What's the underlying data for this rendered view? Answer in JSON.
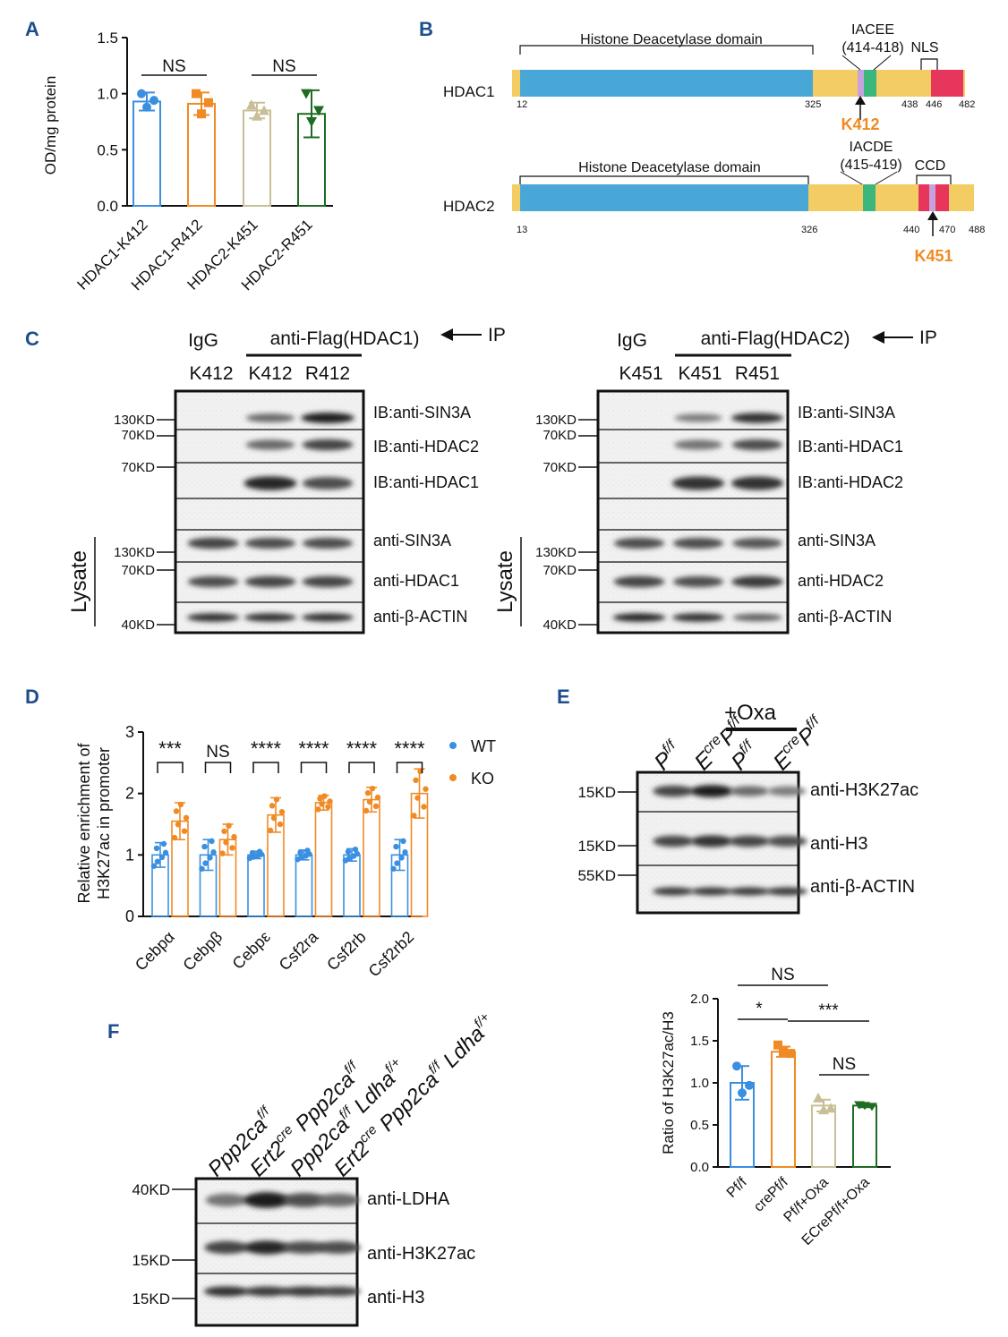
{
  "panels": {
    "A": "A",
    "B": "B",
    "C": "C",
    "D": "D",
    "E": "E",
    "F": "F"
  },
  "colors": {
    "blue": "#3a8fe0",
    "orange": "#f08a24",
    "tan": "#c9bf97",
    "green": "#1e6b23",
    "domain": "#49a7d8",
    "linker": "#f3cd63",
    "motif": "#3cb77c",
    "nls": "#e7365b",
    "accent": "#f08a24"
  },
  "panelA": {
    "chart_data": {
      "type": "bar",
      "ylabel": "OD/mg protein",
      "ylim": [
        0,
        1.5
      ],
      "yticks": [
        "0.0",
        "0.5",
        "1.0",
        "1.5"
      ],
      "categories": [
        "HDAC1-K412",
        "HDAC1-R412",
        "HDAC2-K451",
        "HDAC2-R451"
      ],
      "values": [
        0.93,
        0.91,
        0.85,
        0.82
      ],
      "errors": [
        0.08,
        0.1,
        0.07,
        0.21
      ],
      "points": [
        [
          1.0,
          0.94,
          0.88
        ],
        [
          1.0,
          0.92,
          0.82
        ],
        [
          0.9,
          0.85,
          0.8
        ],
        [
          1.0,
          0.85,
          0.75
        ]
      ],
      "comparisons": [
        {
          "label": "NS",
          "from": 0,
          "to": 1
        },
        {
          "label": "NS",
          "from": 2,
          "to": 3
        }
      ]
    }
  },
  "panelB": {
    "hdac1": {
      "name": "HDAC1",
      "domain_label": "Histone Deacetylase domain",
      "motif_name": "IACEE",
      "motif_range": "(414-418)",
      "region": "NLS",
      "site": "K412",
      "pos": [
        "12",
        "325",
        "438",
        "446",
        "482"
      ]
    },
    "hdac2": {
      "name": "HDAC2",
      "domain_label": "Histone Deacetylase domain",
      "motif_name": "IACDE",
      "motif_range": "(415-419)",
      "region": "CCD",
      "site": "K451",
      "pos": [
        "13",
        "326",
        "440",
        "470",
        "488"
      ]
    }
  },
  "panelC": {
    "left": {
      "igg": "IgG",
      "ip": "anti-Flag(HDAC1)",
      "ip_arrow": "IP",
      "lanes": [
        "K412",
        "K412",
        "R412"
      ],
      "ib": [
        "IB:anti-SIN3A",
        "IB:anti-HDAC2",
        "IB:anti-HDAC1"
      ],
      "lys": [
        "anti-SIN3A",
        "anti-HDAC1",
        "anti-β-ACTIN"
      ],
      "mw": [
        "130KD",
        "70KD",
        "70KD",
        "130KD",
        "70KD",
        "40KD"
      ],
      "lysate": "Lysate"
    },
    "right": {
      "igg": "IgG",
      "ip": "anti-Flag(HDAC2)",
      "ip_arrow": "IP",
      "lanes": [
        "K451",
        "K451",
        "R451"
      ],
      "ib": [
        "IB:anti-SIN3A",
        "IB:anti-HDAC1",
        "IB:anti-HDAC2"
      ],
      "lys": [
        "anti-SIN3A",
        "anti-HDAC2",
        "anti-β-ACTIN"
      ],
      "mw": [
        "130KD",
        "70KD",
        "70KD",
        "130KD",
        "70KD",
        "40KD"
      ],
      "lysate": "Lysate"
    }
  },
  "panelD": {
    "chart_data": {
      "type": "bar",
      "ylabel": [
        "Relative enrichment of",
        "H3K27ac in promoter"
      ],
      "ylim": [
        0,
        3
      ],
      "yticks": [
        "0",
        "1",
        "2",
        "3"
      ],
      "categories": [
        "Cebpα",
        "Cebpβ",
        "Cebpε",
        "Csf2ra",
        "Csf2rb",
        "Csf2rb2"
      ],
      "legend": [
        "WT",
        "KO"
      ],
      "series": [
        {
          "name": "WT",
          "values": [
            1.0,
            1.0,
            1.0,
            1.0,
            1.0,
            1.0
          ],
          "errors": [
            0.2,
            0.25,
            0.06,
            0.08,
            0.1,
            0.25
          ]
        },
        {
          "name": "KO",
          "values": [
            1.55,
            1.25,
            1.65,
            1.85,
            1.9,
            2.0
          ],
          "errors": [
            0.3,
            0.25,
            0.28,
            0.12,
            0.2,
            0.4
          ]
        }
      ],
      "significance": [
        "***",
        "NS",
        "****",
        "****",
        "****",
        "****"
      ]
    }
  },
  "panelE": {
    "oxa": "+Oxa",
    "lanes": [
      {
        "a": "P",
        "s": "f/f"
      },
      {
        "a": "E",
        "as": "cre",
        "b": "P",
        "bs": "f/f"
      },
      {
        "a": "P",
        "s": "f/f"
      },
      {
        "a": "E",
        "as": "cre",
        "b": "P",
        "bs": "f/f"
      }
    ],
    "bands": [
      "anti-H3K27ac",
      "anti-H3",
      "anti-β-ACTIN"
    ],
    "mw": [
      "15KD",
      "15KD",
      "55KD"
    ],
    "chart_data": {
      "type": "bar",
      "ylabel": "Ratio of H3K27ac/H3",
      "ylim": [
        0,
        2.0
      ],
      "yticks": [
        "0.0",
        "0.5",
        "1.0",
        "1.5",
        "2.0"
      ],
      "categories": [
        "Pf/f",
        "crePf/f",
        "Pf/f+Oxa",
        "ECrePf/f+Oxa"
      ],
      "values": [
        1.0,
        1.37,
        0.73,
        0.73
      ],
      "errors": [
        0.2,
        0.06,
        0.07,
        0.02
      ],
      "comparisons": [
        {
          "label": "NS",
          "from": 0,
          "to": 2
        },
        {
          "label": "*",
          "from": 0,
          "to": 1
        },
        {
          "label": "***",
          "from": 1,
          "to": 3
        },
        {
          "label": "NS",
          "from": 2,
          "to": 3
        }
      ]
    }
  },
  "panelF": {
    "lanes": [
      "Ppp2ca f/f",
      "Ert2cre Ppp2ca f/f",
      "Ppp2ca f/f Ldha f/+",
      "Ert2cre Ppp2ca f/f Ldha f/+"
    ],
    "bands": [
      "anti-LDHA",
      "anti-H3K27ac",
      "anti-H3"
    ],
    "mw": [
      "40KD",
      "15KD",
      "15KD"
    ]
  }
}
